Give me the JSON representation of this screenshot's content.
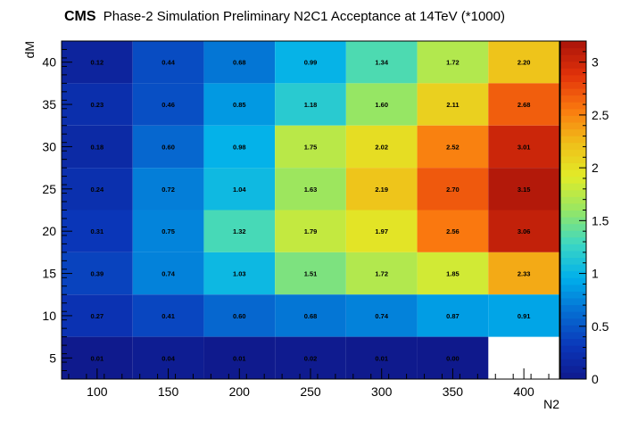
{
  "header": {
    "experiment": "CMS",
    "subtitle": "Phase-2 Simulation Preliminary   N2C1 Acceptance at 14TeV (*1000)"
  },
  "chart_data": {
    "type": "heatmap",
    "xlabel": "N2",
    "ylabel": "dM",
    "x": [
      100,
      150,
      200,
      250,
      300,
      350,
      400
    ],
    "y": [
      5,
      10,
      15,
      20,
      25,
      30,
      35,
      40
    ],
    "xlim": [
      75,
      425
    ],
    "ylim": [
      2.5,
      42.5
    ],
    "zlim": [
      0,
      3.2
    ],
    "x_ticks": [
      100,
      150,
      200,
      250,
      300,
      350,
      400
    ],
    "y_ticks": [
      5,
      10,
      15,
      20,
      25,
      30,
      35,
      40
    ],
    "z_ticks": [
      0,
      0.5,
      1,
      1.5,
      2,
      2.5,
      3
    ],
    "colormap": "rainbow",
    "rows": [
      {
        "y": 40,
        "values": [
          "0.12",
          "0.44",
          "0.68",
          "0.99",
          "1.34",
          "1.72",
          "2.20"
        ]
      },
      {
        "y": 35,
        "values": [
          "0.23",
          "0.46",
          "0.85",
          "1.18",
          "1.60",
          "2.11",
          "2.68"
        ]
      },
      {
        "y": 30,
        "values": [
          "0.18",
          "0.60",
          "0.98",
          "1.75",
          "2.02",
          "2.52",
          "3.01"
        ]
      },
      {
        "y": 25,
        "values": [
          "0.24",
          "0.72",
          "1.04",
          "1.63",
          "2.19",
          "2.70",
          "3.15"
        ]
      },
      {
        "y": 20,
        "values": [
          "0.31",
          "0.75",
          "1.32",
          "1.79",
          "1.97",
          "2.56",
          "3.06"
        ]
      },
      {
        "y": 15,
        "values": [
          "0.39",
          "0.74",
          "1.03",
          "1.51",
          "1.72",
          "1.85",
          "2.33"
        ]
      },
      {
        "y": 10,
        "values": [
          "0.27",
          "0.41",
          "0.60",
          "0.68",
          "0.74",
          "0.87",
          "0.91"
        ]
      },
      {
        "y": 5,
        "values": [
          "0.01",
          "0.04",
          "0.01",
          "0.02",
          "0.01",
          "0.00",
          null
        ]
      }
    ]
  }
}
